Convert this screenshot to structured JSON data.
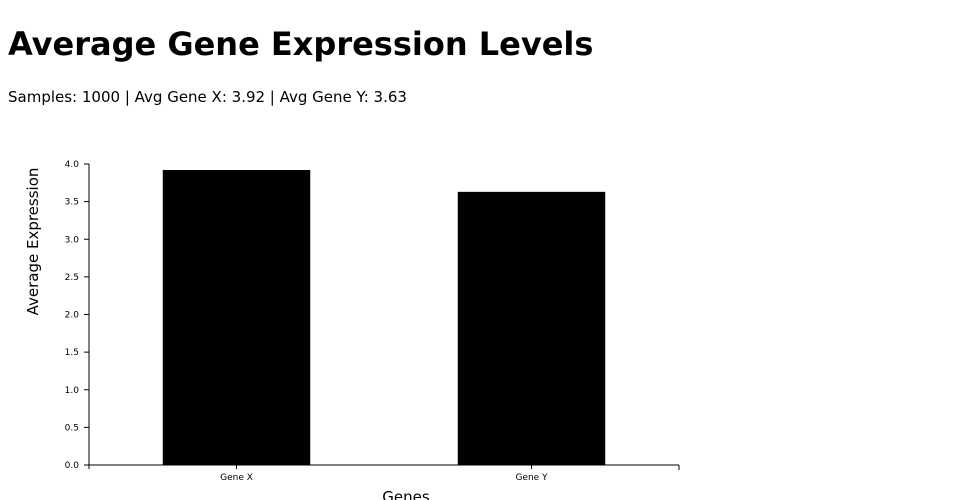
{
  "header": {
    "title": "Average Gene Expression Levels",
    "summary": "Samples: 1000 | Avg Gene X: 3.92 | Avg Gene Y: 3.63"
  },
  "chart_data": {
    "type": "bar",
    "categories": [
      "Gene X",
      "Gene Y"
    ],
    "values": [
      3.92,
      3.63
    ],
    "title": "Average Gene Expression Levels",
    "xlabel": "Genes",
    "ylabel": "Average Expression",
    "ylim": [
      0,
      4.0
    ],
    "yticks": [
      "0.0",
      "0.5",
      "1.0",
      "1.5",
      "2.0",
      "2.5",
      "3.0",
      "3.5",
      "4.0"
    ],
    "grid": false,
    "legend": "none",
    "bar_color": "#000000"
  }
}
